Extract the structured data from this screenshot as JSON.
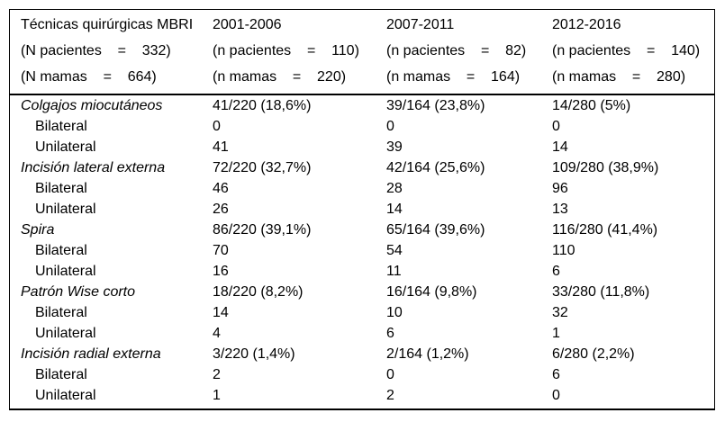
{
  "colors": {
    "background": "#ffffff",
    "text": "#000000",
    "border": "#000000"
  },
  "table": {
    "header": {
      "columns": [
        {
          "title": "Técnicas quirúrgicas MBRI",
          "patients": "(N pacientes    =    332)",
          "breasts": "(N mamas    =    664)"
        },
        {
          "title": "2001-2006",
          "patients": "(n pacientes    =    110)",
          "breasts": "(n mamas    =    220)"
        },
        {
          "title": "2007-2011",
          "patients": "(n pacientes    =    82)",
          "breasts": "(n mamas    =    164)"
        },
        {
          "title": "2012-2016",
          "patients": "(n pacientes    =    140)",
          "breasts": "(n mamas    =    280)"
        }
      ]
    },
    "rows": [
      {
        "label": "Colgajos miocutáneos",
        "values": [
          "41/220 (18,6%)",
          "39/164 (23,8%)",
          "14/280 (5%)"
        ]
      },
      {
        "label": "Bilateral",
        "values": [
          "0",
          "0",
          "0"
        ]
      },
      {
        "label": "Unilateral",
        "values": [
          "41",
          "39",
          "14"
        ]
      },
      {
        "label": "Incisión lateral externa",
        "values": [
          "72/220 (32,7%)",
          "42/164 (25,6%)",
          "109/280 (38,9%)"
        ]
      },
      {
        "label": "Bilateral",
        "values": [
          "46",
          "28",
          "96"
        ]
      },
      {
        "label": "Unilateral",
        "values": [
          "26",
          "14",
          "13"
        ]
      },
      {
        "label": "Spira",
        "values": [
          "86/220 (39,1%)",
          "65/164 (39,6%)",
          "116/280 (41,4%)"
        ]
      },
      {
        "label": "Bilateral",
        "values": [
          "70",
          "54",
          "110"
        ]
      },
      {
        "label": "Unilateral",
        "values": [
          "16",
          "11",
          "6"
        ]
      },
      {
        "label": "Patrón Wise corto",
        "values": [
          "18/220 (8,2%)",
          "16/164 (9,8%)",
          "33/280 (11,8%)"
        ]
      },
      {
        "label": "Bilateral",
        "values": [
          "14",
          "10",
          "32"
        ]
      },
      {
        "label": "Unilateral",
        "values": [
          "4",
          "6",
          "1"
        ]
      },
      {
        "label": "Incisión radial externa",
        "values": [
          "3/220 (1,4%)",
          "2/164 (1,2%)",
          "6/280 (2,2%)"
        ]
      },
      {
        "label": "Bilateral",
        "values": [
          "2",
          "0",
          "6"
        ]
      },
      {
        "label": "Unilateral",
        "values": [
          "1",
          "2",
          "0"
        ]
      }
    ]
  }
}
